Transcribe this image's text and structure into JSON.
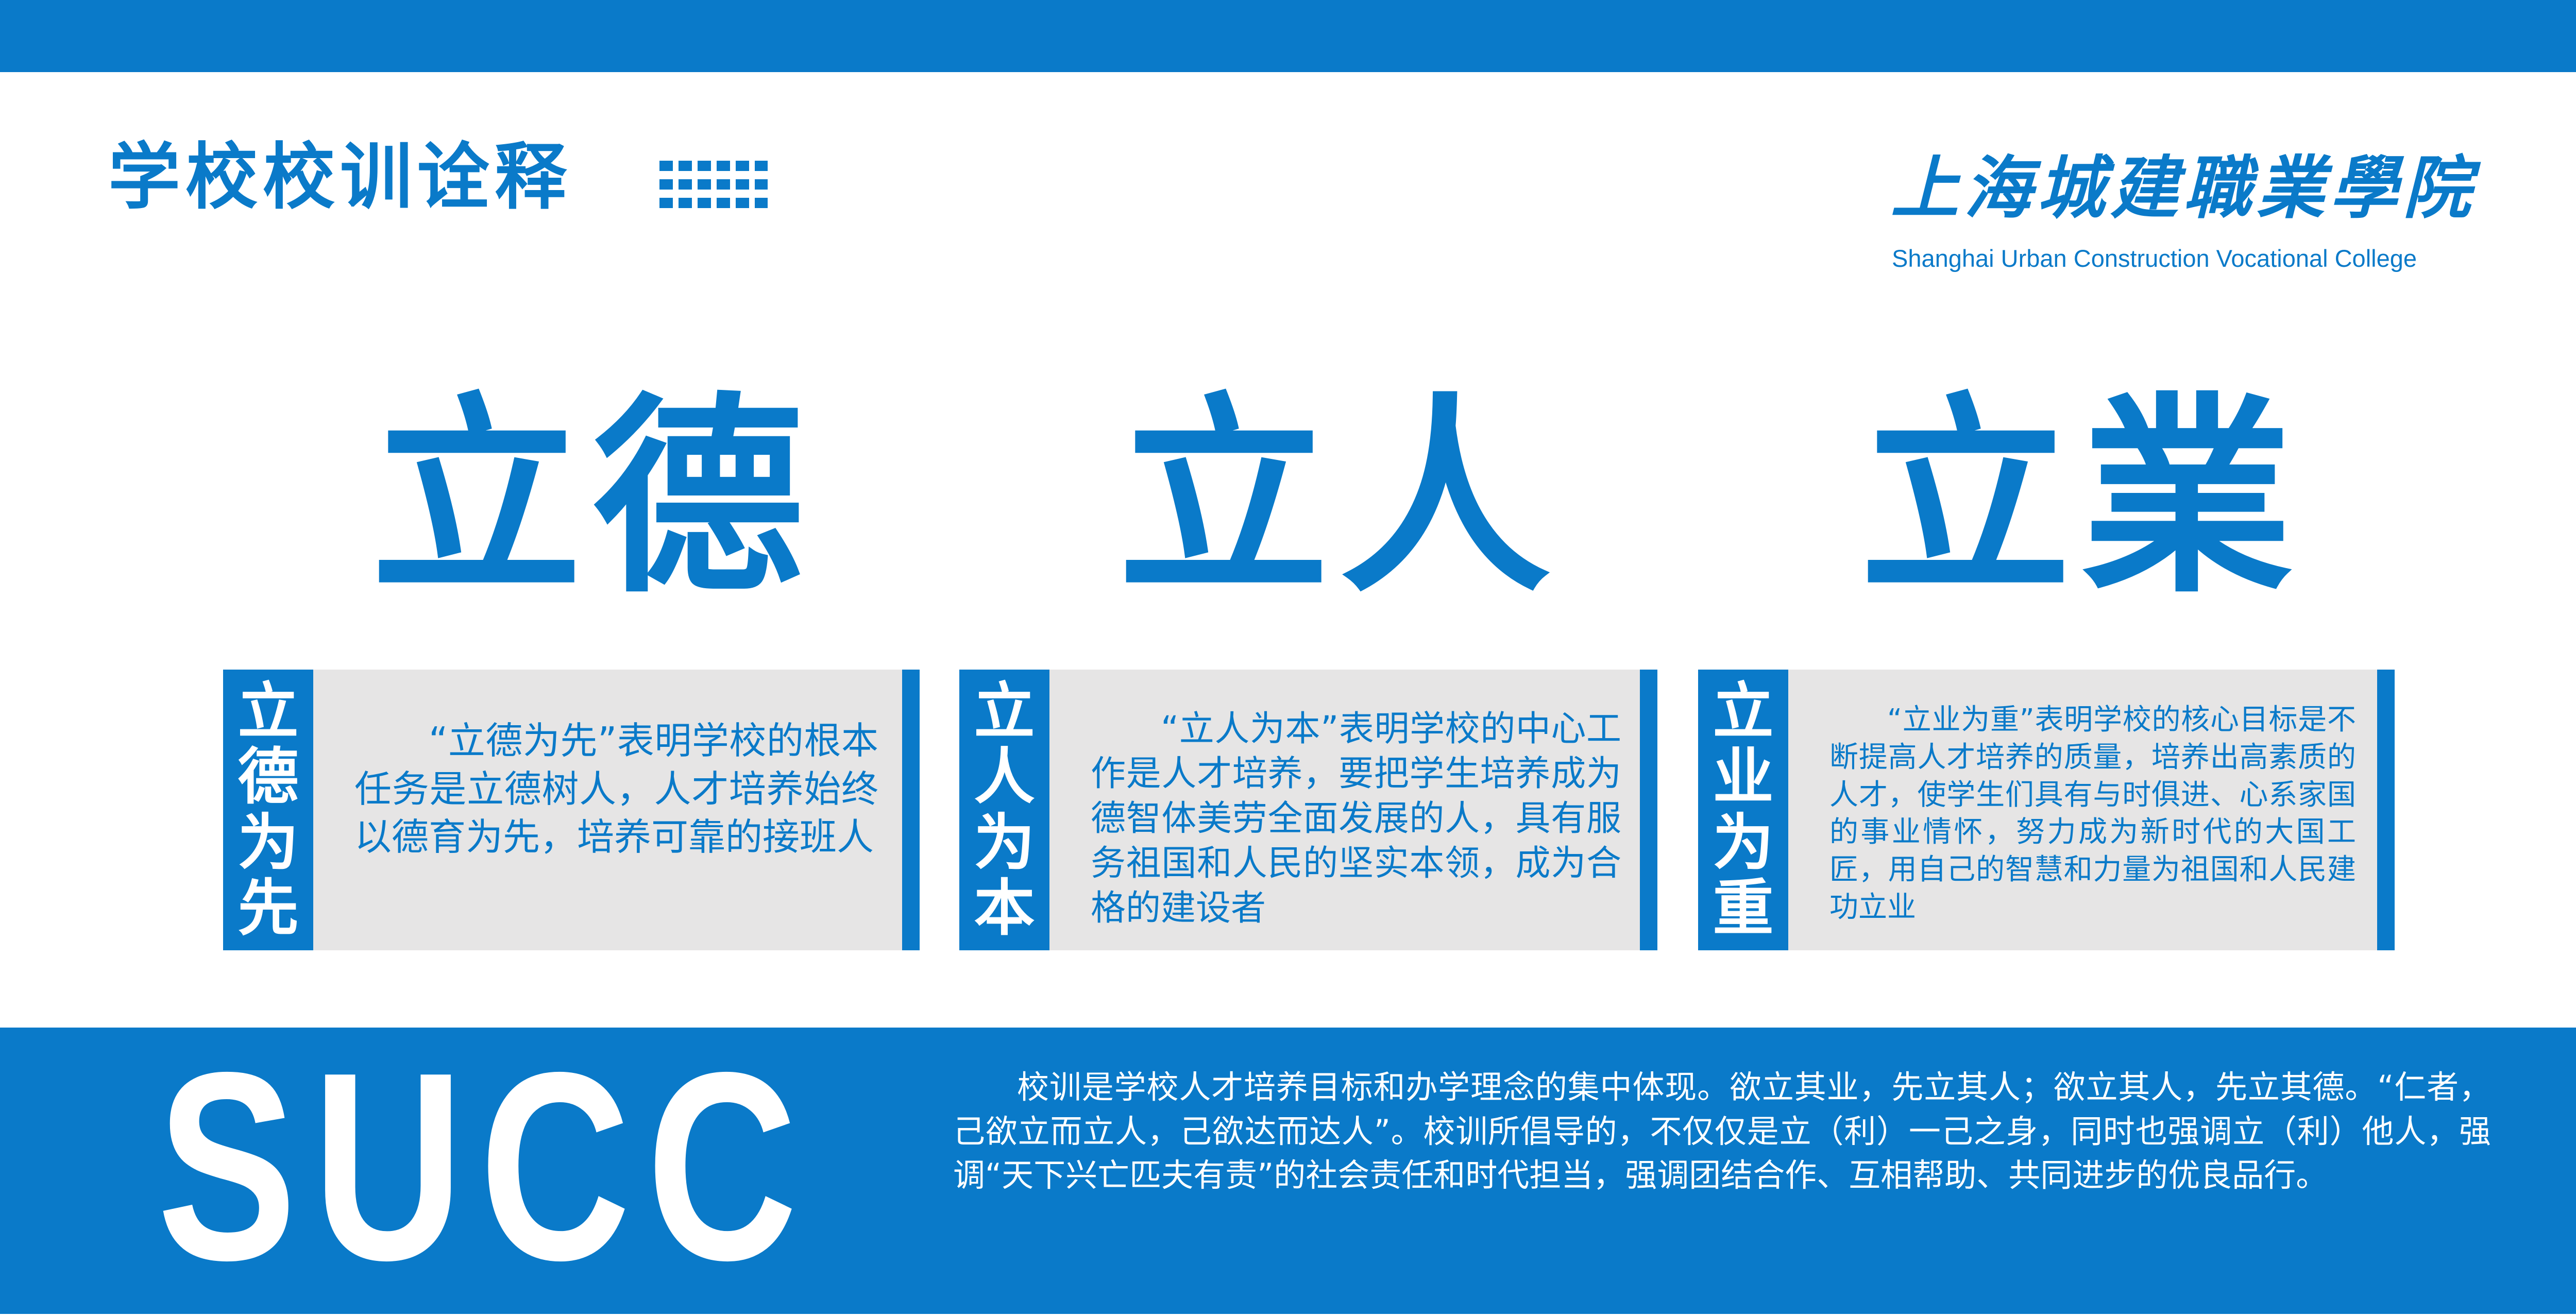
{
  "header": {
    "title": "学校校训诠释",
    "college_name_cn": "上海城建職業學院",
    "college_name_en": "Shanghai Urban Construction Vocational College"
  },
  "motto": [
    "立德",
    "立人",
    "立業"
  ],
  "cards": [
    {
      "tag": "立德为先",
      "text": "“立德为先”表明学校的根本任务是立德树人，人才培养始终以德育为先，培养可靠的接班人"
    },
    {
      "tag": "立人为本",
      "text": "“立人为本”表明学校的中心工作是人才培养，要把学生培养成为德智体美劳全面发展的人，具有服务祖国和人民的坚实本领，成为合格的建设者"
    },
    {
      "tag": "立业为重",
      "text": "“立业为重”表明学校的核心目标是不断提高人才培养的质量，培养出高素质的人才，使学生们具有与时俱进、心系家国的事业情怀，努力成为新时代的大国工匠，用自己的智慧和力量为祖国和人民建功立业"
    }
  ],
  "footer": {
    "logo_text": "SUCC",
    "summary": "校训是学校人才培养目标和办学理念的集中体现。欲立其业，先立其人；欲立其人，先立其德。“仁者，己欲立而立人，己欲达而达人”。校训所倡导的，不仅仅是立（利）一己之身，同时也强调立（利）他人，强调“天下兴亡匹夫有责”的社会责任和时代担当，强调团结合作、互相帮助、共同进步的优良品行。"
  },
  "colors": {
    "brand_blue": "#0a7ac9",
    "card_gray": "#e6e5e5",
    "background": "#ffffff"
  },
  "icons": {
    "title_decoration": "dot-grid-icon"
  }
}
